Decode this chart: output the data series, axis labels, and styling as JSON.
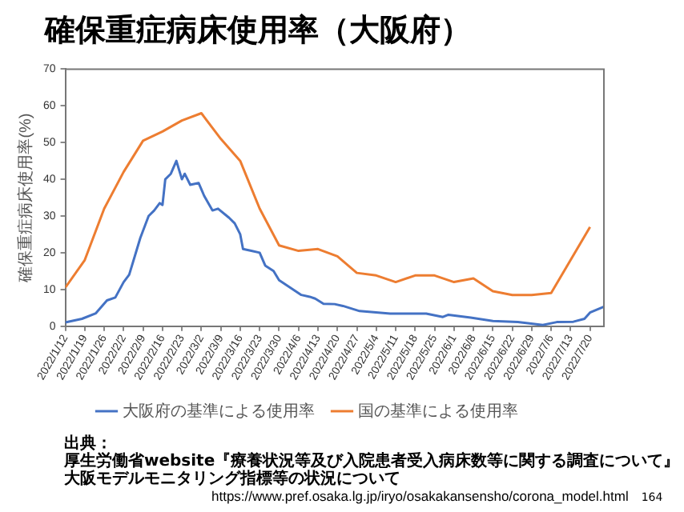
{
  "chart_data": {
    "type": "line",
    "title": "確保重症病床使用率（大阪府）",
    "ylabel": "確保重症病床使用率(%)",
    "ylim": [
      0,
      70
    ],
    "yticks": [
      0,
      10,
      20,
      30,
      40,
      50,
      60,
      70
    ],
    "xlim": [
      "2022-01-12",
      "2022-07-25"
    ],
    "xticks": [
      {
        "value": "2022-01-12",
        "label": "2022/1/12"
      },
      {
        "value": "2022-01-19",
        "label": "2022/1/19"
      },
      {
        "value": "2022-01-26",
        "label": "2022/1/26"
      },
      {
        "value": "2022-02-02",
        "label": "2022/2/2"
      },
      {
        "value": "2022-02-09",
        "label": "2022/2/9"
      },
      {
        "value": "2022-02-16",
        "label": "2022/2/16"
      },
      {
        "value": "2022-02-23",
        "label": "2022/2/23"
      },
      {
        "value": "2022-03-02",
        "label": "2022/3/2"
      },
      {
        "value": "2022-03-09",
        "label": "2022/3/9"
      },
      {
        "value": "2022-03-16",
        "label": "2022/3/16"
      },
      {
        "value": "2022-03-23",
        "label": "2022/3/23"
      },
      {
        "value": "2022-03-30",
        "label": "2022/3/30"
      },
      {
        "value": "2022-04-06",
        "label": "2022/4/6"
      },
      {
        "value": "2022-04-13",
        "label": "2022/4/13"
      },
      {
        "value": "2022-04-20",
        "label": "2022/4/20"
      },
      {
        "value": "2022-04-27",
        "label": "2022/4/27"
      },
      {
        "value": "2022-05-04",
        "label": "2022/5/4"
      },
      {
        "value": "2022-05-11",
        "label": "2022/5/11"
      },
      {
        "value": "2022-05-18",
        "label": "2022/5/18"
      },
      {
        "value": "2022-05-25",
        "label": "2022/5/25"
      },
      {
        "value": "2022-06-01",
        "label": "2022/6/1"
      },
      {
        "value": "2022-06-08",
        "label": "2022/6/8"
      },
      {
        "value": "2022-06-15",
        "label": "2022/6/15"
      },
      {
        "value": "2022-06-22",
        "label": "2022/6/22"
      },
      {
        "value": "2022-06-29",
        "label": "2022/6/29"
      },
      {
        "value": "2022-07-06",
        "label": "2022/7/6"
      },
      {
        "value": "2022-07-13",
        "label": "2022/7/13"
      },
      {
        "value": "2022-07-20",
        "label": "2022/7/20"
      }
    ],
    "grid": false,
    "legend": "bottom",
    "marker": "none",
    "series": [
      {
        "name": "大阪府の基準による使用率",
        "color": "#4472c4",
        "x": [
          "2022-01-12",
          "2022-01-18",
          "2022-01-23",
          "2022-01-27",
          "2022-01-30",
          "2022-02-02",
          "2022-02-04",
          "2022-02-06",
          "2022-02-08",
          "2022-02-11",
          "2022-02-13",
          "2022-02-15",
          "2022-02-16",
          "2022-02-17",
          "2022-02-19",
          "2022-02-21",
          "2022-02-23",
          "2022-02-24",
          "2022-02-26",
          "2022-03-01",
          "2022-03-03",
          "2022-03-06",
          "2022-03-08",
          "2022-03-12",
          "2022-03-14",
          "2022-03-16",
          "2022-03-17",
          "2022-03-20",
          "2022-03-23",
          "2022-03-25",
          "2022-03-28",
          "2022-03-30",
          "2022-04-03",
          "2022-04-07",
          "2022-04-10",
          "2022-04-12",
          "2022-04-15",
          "2022-04-19",
          "2022-04-22",
          "2022-04-28",
          "2022-05-09",
          "2022-05-22",
          "2022-05-28",
          "2022-05-30",
          "2022-06-07",
          "2022-06-15",
          "2022-06-24",
          "2022-07-03",
          "2022-07-08",
          "2022-07-14",
          "2022-07-18",
          "2022-07-20",
          "2022-07-25"
        ],
        "values": [
          1,
          2,
          3.5,
          7,
          7.8,
          12,
          14,
          19,
          24,
          30,
          31.5,
          33.5,
          33,
          40,
          41.5,
          45,
          40,
          41.5,
          38.5,
          39,
          35.5,
          31.5,
          32,
          29.5,
          28,
          25,
          21,
          20.5,
          20,
          16.5,
          15,
          12.5,
          10.5,
          8.5,
          8,
          7.5,
          6.1,
          6,
          5.5,
          4.1,
          3.4,
          3.4,
          2.5,
          3.1,
          2.3,
          1.4,
          1.1,
          0.3,
          1.1,
          1.2,
          2,
          3.7,
          5.3
        ]
      },
      {
        "name": "国の基準による使用率",
        "color": "#ed7d31",
        "x": [
          "2022-01-12",
          "2022-01-19",
          "2022-01-26",
          "2022-02-02",
          "2022-02-09",
          "2022-02-16",
          "2022-02-23",
          "2022-03-02",
          "2022-03-09",
          "2022-03-16",
          "2022-03-23",
          "2022-03-30",
          "2022-04-06",
          "2022-04-13",
          "2022-04-20",
          "2022-04-27",
          "2022-05-04",
          "2022-05-11",
          "2022-05-18",
          "2022-05-25",
          "2022-06-01",
          "2022-06-08",
          "2022-06-15",
          "2022-06-22",
          "2022-06-29",
          "2022-07-06",
          "2022-07-13",
          "2022-07-20"
        ],
        "values": [
          10.5,
          18,
          32,
          42,
          50.5,
          53,
          56,
          58,
          51,
          45,
          32,
          22,
          20.5,
          21,
          19,
          14.5,
          13.8,
          12,
          13.8,
          13.8,
          12,
          13,
          9.5,
          8.5,
          8.5,
          9,
          18,
          27
        ]
      }
    ],
    "annotations": [
      "出典：",
      "厚生労働省website『療養状況等及び入院患者受入病床数等に関する調査について』",
      "大阪モデルモニタリング指標等の状況について",
      "https://www.pref.osaka.lg.jp/iryo/osakakansensho/corona_model.html",
      "164"
    ]
  }
}
